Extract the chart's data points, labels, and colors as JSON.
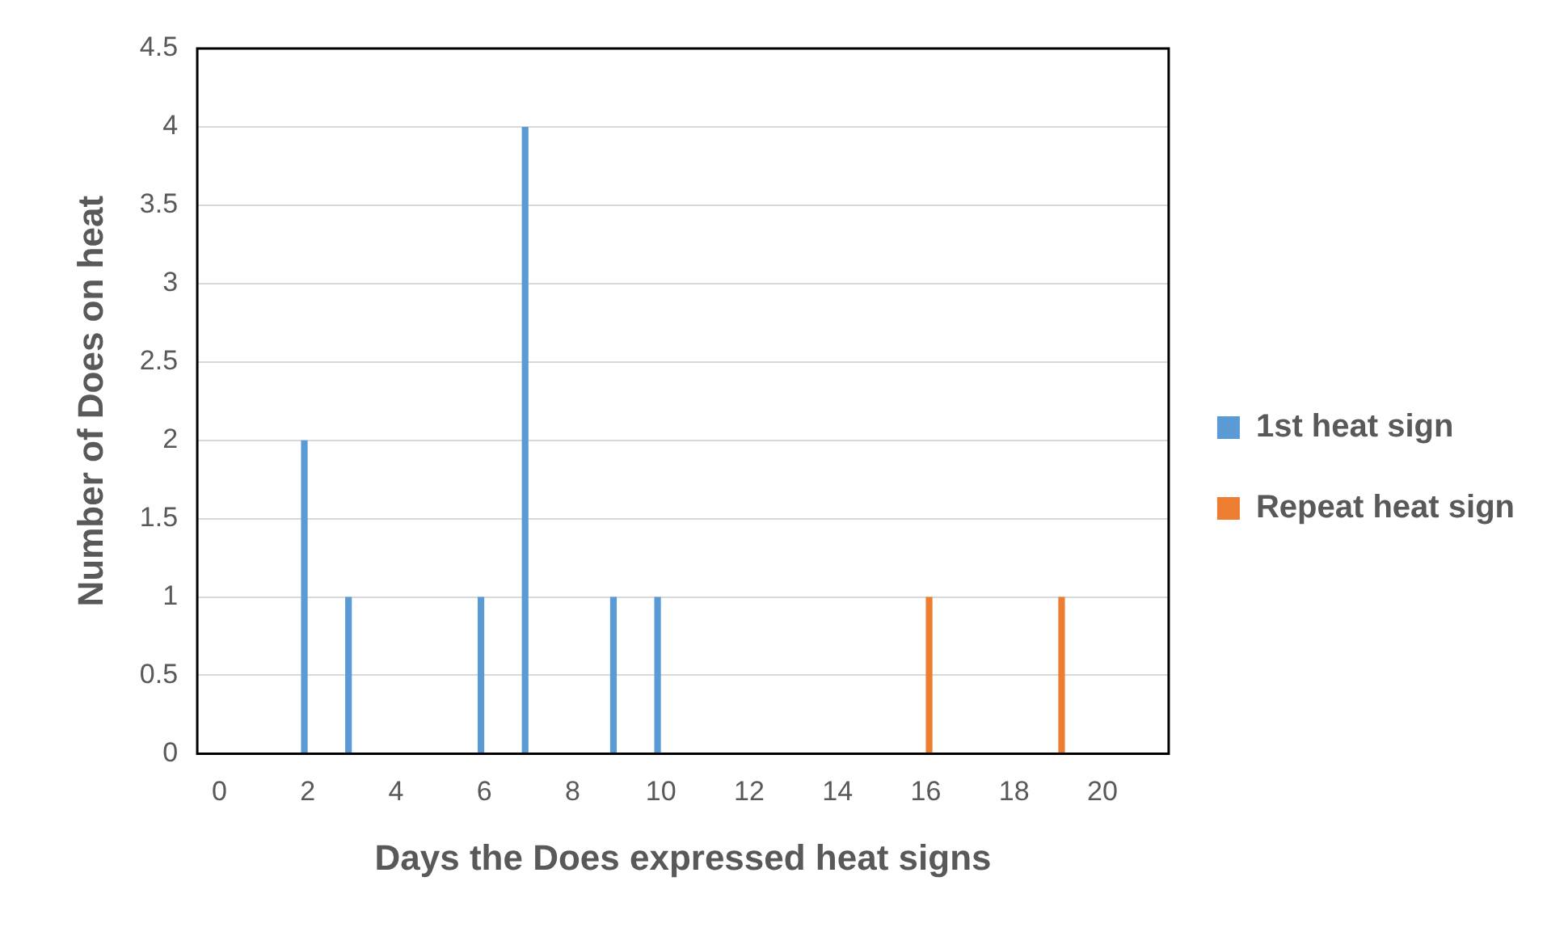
{
  "chart_data": {
    "type": "bar",
    "xlabel": "Days the Does expressed heat signs",
    "ylabel": "Number of Does on heat",
    "categories": [
      "0",
      null,
      "2",
      null,
      "4",
      null,
      "6",
      null,
      "8",
      null,
      "10",
      null,
      "12",
      null,
      "14",
      null,
      "16",
      null,
      "18",
      null,
      "20",
      null
    ],
    "series": [
      {
        "name": "1st heat sign",
        "color": "#5b9bd5",
        "values": [
          0,
          0,
          2,
          1,
          0,
          0,
          1,
          4,
          0,
          1,
          1,
          0,
          0,
          0,
          0,
          0,
          0,
          0,
          0,
          0,
          0,
          0
        ]
      },
      {
        "name": "Repeat heat sign",
        "color": "#ed7d31",
        "values": [
          0,
          0,
          0,
          0,
          0,
          0,
          0,
          0,
          0,
          0,
          0,
          0,
          0,
          0,
          0,
          0,
          1,
          0,
          0,
          1,
          0,
          0
        ]
      }
    ],
    "ylim": [
      0,
      4.5
    ],
    "yticks": [
      0,
      0.5,
      1,
      1.5,
      2,
      2.5,
      3,
      3.5,
      4,
      4.5
    ],
    "grid": "y",
    "legend": "right"
  }
}
